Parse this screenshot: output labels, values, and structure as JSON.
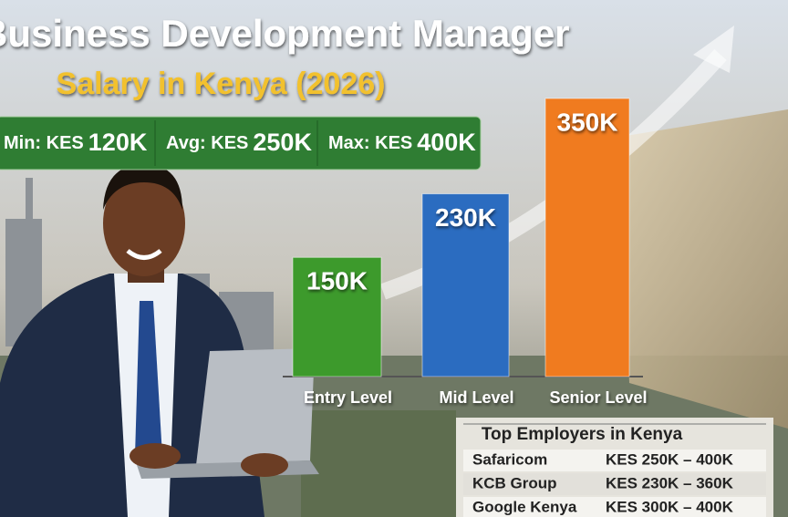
{
  "header": {
    "title": "Business Development Manager",
    "subtitle": "Salary in Kenya (2026)"
  },
  "stats": [
    {
      "label": "Min: KES",
      "value": "120K"
    },
    {
      "label": "Avg: KES",
      "value": "250K"
    },
    {
      "label": "Max: KES",
      "value": "400K"
    }
  ],
  "chart_data": {
    "type": "bar",
    "categories": [
      "Entry Level",
      "Mid Level",
      "Senior Level"
    ],
    "values": [
      150000,
      230000,
      350000
    ],
    "value_labels": [
      "150K",
      "230K",
      "350K"
    ],
    "colors": [
      "#3d9a2c",
      "#2b6cc0",
      "#f07b1f"
    ]
  },
  "employers": {
    "title": "Top Employers in Kenya",
    "rows": [
      [
        "Safaricom",
        "KES 250K – 400K"
      ],
      [
        "KCB Group",
        "KES 230K – 360K"
      ],
      [
        "Google Kenya",
        "KES 300K – 400K"
      ]
    ]
  }
}
